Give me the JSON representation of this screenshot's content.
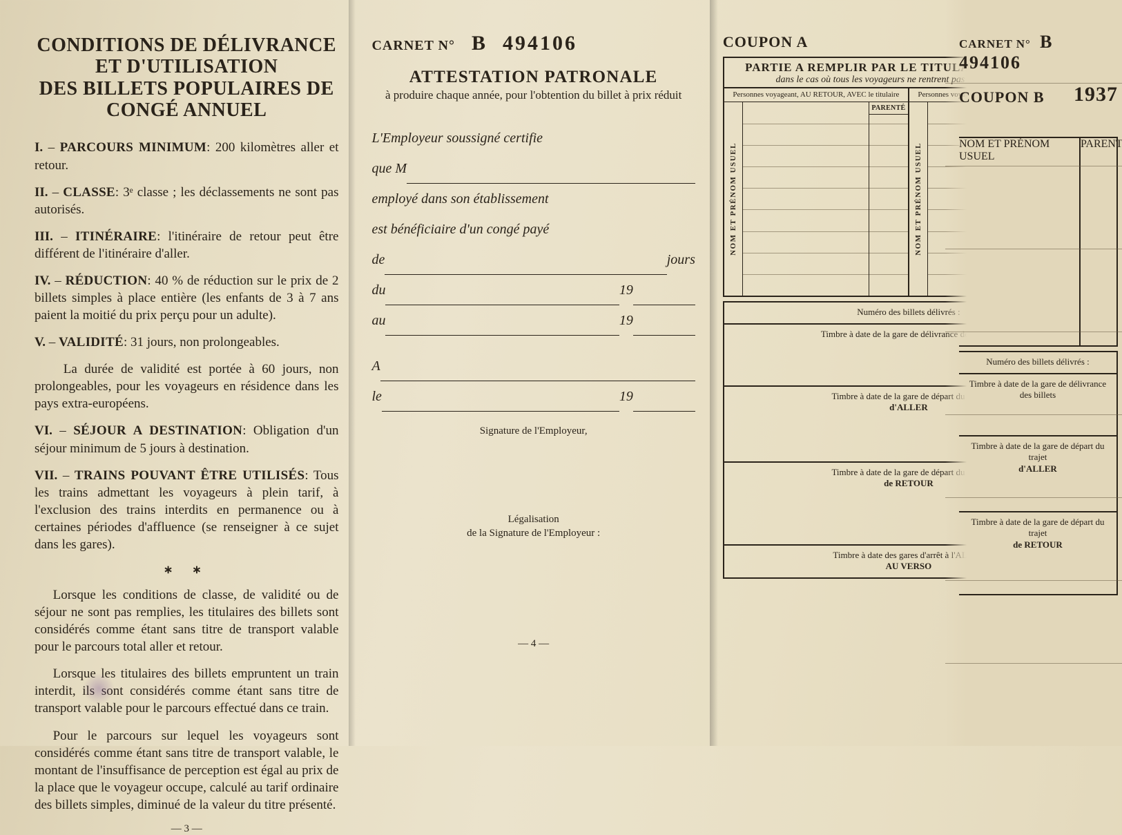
{
  "colors": {
    "ink": "#2a231a",
    "paper_left": "#dcd1b4",
    "paper_mid": "#ebe3cc",
    "paper_right": "#e2d7ba",
    "rule": "#6a5d46"
  },
  "left": {
    "title_line1": "CONDITIONS DE DÉLIVRANCE ET D'UTILISATION",
    "title_line2": "DES BILLETS POPULAIRES DE CONGÉ ANNUEL",
    "items": [
      {
        "num": "I.",
        "key": "PARCOURS MINIMUM",
        "txt": ": 200 kilomètres aller et retour."
      },
      {
        "num": "II.",
        "key": "CLASSE",
        "txt": ": 3ᵉ classe ; les déclassements ne sont pas autorisés."
      },
      {
        "num": "III.",
        "key": "ITINÉRAIRE",
        "txt": ": l'itinéraire de retour peut être différent de l'itinéraire d'aller."
      },
      {
        "num": "IV.",
        "key": "RÉDUCTION",
        "txt": ": 40 % de réduction sur le prix de 2 billets simples à place entière (les enfants de 3 à 7 ans paient la moitié du prix perçu pour un adulte)."
      },
      {
        "num": "V.",
        "key": "VALIDITÉ",
        "txt": ": 31 jours, non prolongeables."
      },
      {
        "num": "",
        "key": "",
        "txt": "La durée de validité est portée à 60 jours, non prolongeables, pour les voyageurs en résidence dans les pays extra-européens."
      },
      {
        "num": "VI.",
        "key": "SÉJOUR A DESTINATION",
        "txt": ": Obligation d'un séjour minimum de 5 jours à destination."
      },
      {
        "num": "VII.",
        "key": "TRAINS POUVANT ÊTRE UTILISÉS",
        "txt": ": Tous les trains admettant les voyageurs à plein tarif, à l'exclusion des trains interdits en permanence ou à certaines périodes d'affluence (se renseigner à ce sujet dans les gares)."
      }
    ],
    "asterisks": "∗ ∗",
    "paras": [
      "Lorsque les conditions de classe, de validité ou de séjour ne sont pas remplies, les titulaires des billets sont considérés comme étant sans titre de transport valable pour le parcours total aller et retour.",
      "Lorsque les titulaires des billets empruntent un train interdit, ils sont considérés comme étant sans titre de transport valable pour le parcours effectué dans ce train.",
      "Pour le parcours sur lequel les voyageurs sont considérés comme étant sans titre de transport valable, le montant de l'insuffisance de perception est égal au prix de la place que le voyageur occupe, calculé au tarif ordinaire des billets simples, diminué de la valeur du titre présenté."
    ],
    "pagenum": "— 3 —"
  },
  "middle": {
    "carnet_lbl": "CARNET N°",
    "carnet_series": "B",
    "carnet_number": "494106",
    "att_title": "ATTESTATION PATRONALE",
    "att_sub": "à produire chaque année, pour l'obtention du billet à prix réduit",
    "cert_intro": "L'Employeur soussigné certifie",
    "cert_que": "que M",
    "cert_emp": "employé dans son établissement",
    "cert_benef": "est bénéficiaire d'un congé payé",
    "cert_de": "de",
    "cert_jours": "jours",
    "cert_du": "du",
    "cert_au": "au",
    "cert_19": "19",
    "cert_A": "A",
    "cert_le": "le",
    "sig_label": "Signature de l'Employeur,",
    "legal_l1": "Légalisation",
    "legal_l2": "de la Signature de l'Employeur :",
    "pagenum": "— 4 —"
  },
  "right": {
    "carnet_lbl": "CARNET N°",
    "carnet_series": "B",
    "carnet_number": "494106",
    "couponA_lbl": "COUPON A",
    "couponB_lbl": "COUPON B",
    "year": "1937",
    "box_head_l1": "PARTIE A REMPLIR PAR LE TITULAIRE DU CARNET",
    "box_head_l2": "dans le cas où tous les voyageurs ne rentrent pas ensemble au retour",
    "subA": "Personnes voyageant, AU RETOUR, AVEC le titulaire",
    "subB": "Personnes voyageant, AU RETOUR, SANS le titulaire",
    "vlabel": "NOM ET PRÉNOM USUEL",
    "parente": "PARENTÉ",
    "ruled_rows": 8,
    "cells": [
      "Numéro des billets délivrés :",
      "Timbre à date de la gare de délivrance des billets",
      "Timbre à date de la gare de départ du trajet",
      "d'ALLER",
      "Timbre à date de la gare de départ du trajet",
      "de RETOUR",
      "Timbre à date des gares d'arrêt à l'ALLER",
      "AU VERSO"
    ]
  }
}
